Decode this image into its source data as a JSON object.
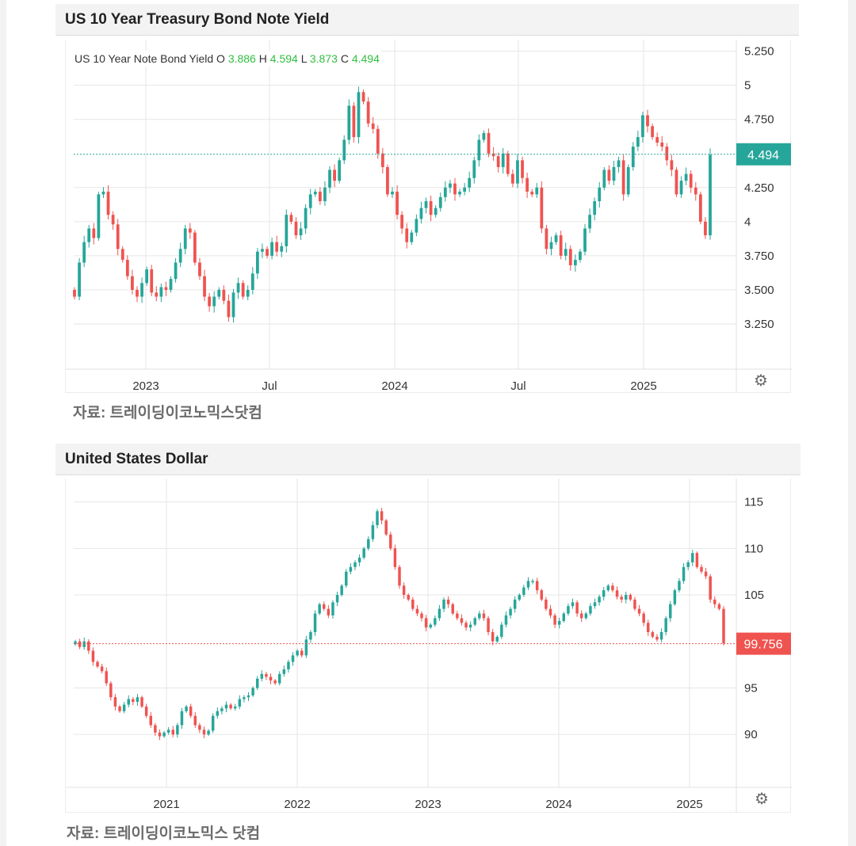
{
  "charts": [
    {
      "header_title": "US 10 Year Treasury Bond Note Yield",
      "source": "자료: 트레이딩이코노믹스닷컴",
      "ohlc": {
        "label": "US 10 Year Note Bond Yield",
        "o_label": "O",
        "o": "3.886",
        "h_label": "H",
        "h": "4.594",
        "l_label": "L",
        "l": "3.873",
        "c_label": "C",
        "c": "4.494"
      },
      "last_value_label": "4.494",
      "icon": "gear-icon"
    },
    {
      "header_title": "United States Dollar",
      "source": "자료: 트레이딩이코노믹스 닷컴",
      "last_value_label": "99.756",
      "icon": "gear-icon"
    }
  ],
  "colors": {
    "up": "#26a69a",
    "down": "#ef5350",
    "last_yield_badge": "#26a69a",
    "last_dollar_badge": "#ef5350",
    "grid": "#e6e6e6"
  },
  "chart_data": [
    {
      "type": "candlestick",
      "title": "US 10 Year Treasury Bond Note Yield",
      "x_ticks": [
        "2023",
        "Jul",
        "2024",
        "Jul",
        "2025"
      ],
      "y_ticks": [
        "3.250",
        "3.500",
        "3.750",
        "4",
        "4.250",
        "4.750",
        "5",
        "5.250"
      ],
      "ylim": [
        3.0,
        5.3
      ],
      "last_value": 4.494,
      "grid": true,
      "weekly_close": [
        3.45,
        3.7,
        3.85,
        3.95,
        3.88,
        4.2,
        4.22,
        4.05,
        3.98,
        3.8,
        3.72,
        3.6,
        3.5,
        3.45,
        3.55,
        3.65,
        3.48,
        3.45,
        3.52,
        3.5,
        3.58,
        3.7,
        3.8,
        3.95,
        3.92,
        3.7,
        3.6,
        3.45,
        3.38,
        3.45,
        3.5,
        3.42,
        3.3,
        3.48,
        3.55,
        3.45,
        3.5,
        3.62,
        3.78,
        3.8,
        3.75,
        3.85,
        3.78,
        3.82,
        4.05,
        4.0,
        3.9,
        3.95,
        4.1,
        4.2,
        4.22,
        4.15,
        4.25,
        4.38,
        4.3,
        4.45,
        4.6,
        4.85,
        4.62,
        4.95,
        4.88,
        4.72,
        4.68,
        4.5,
        4.4,
        4.2,
        4.22,
        4.05,
        3.95,
        3.85,
        3.92,
        4.02,
        4.1,
        4.15,
        4.05,
        4.1,
        4.18,
        4.25,
        4.28,
        4.2,
        4.22,
        4.25,
        4.32,
        4.45,
        4.6,
        4.65,
        4.5,
        4.48,
        4.4,
        4.5,
        4.35,
        4.28,
        4.45,
        4.32,
        4.22,
        4.2,
        4.25,
        3.95,
        3.8,
        3.85,
        3.9,
        3.75,
        3.8,
        3.68,
        3.72,
        3.78,
        3.95,
        4.05,
        4.15,
        4.25,
        4.38,
        4.3,
        4.4,
        4.45,
        4.2,
        4.4,
        4.55,
        4.62,
        4.78,
        4.7,
        4.62,
        4.58,
        4.55,
        4.45,
        4.38,
        4.2,
        4.3,
        4.35,
        4.25,
        4.2,
        4.0,
        3.9,
        4.49
      ]
    },
    {
      "type": "candlestick",
      "title": "United States Dollar",
      "x_ticks": [
        "2021",
        "2022",
        "2023",
        "2024",
        "2025"
      ],
      "y_ticks": [
        "90",
        "95",
        "105",
        "110",
        "115"
      ],
      "ylim": [
        85.5,
        116.5
      ],
      "last_value": 99.756,
      "grid": true,
      "weekly_close": [
        100.0,
        99.4,
        100.0,
        99.0,
        97.8,
        97.3,
        96.8,
        95.5,
        94.0,
        93.0,
        92.5,
        93.2,
        93.8,
        93.5,
        94.0,
        93.0,
        92.0,
        91.0,
        90.2,
        89.8,
        90.2,
        90.5,
        90.0,
        91.0,
        92.5,
        93.0,
        92.0,
        91.0,
        90.5,
        90.0,
        90.4,
        92.0,
        92.5,
        92.8,
        93.2,
        92.8,
        93.0,
        93.8,
        94.0,
        94.2,
        95.0,
        96.0,
        96.5,
        96.2,
        95.8,
        95.5,
        96.5,
        97.0,
        97.8,
        98.5,
        99.0,
        98.5,
        100.2,
        101.0,
        103.0,
        104.0,
        103.5,
        102.8,
        104.2,
        105.0,
        106.0,
        107.5,
        108.0,
        108.5,
        109.0,
        110.0,
        111.0,
        112.5,
        114.0,
        113.0,
        111.5,
        110.0,
        108.0,
        106.0,
        105.0,
        104.5,
        103.5,
        103.0,
        102.5,
        101.5,
        101.8,
        102.5,
        103.5,
        104.5,
        104.0,
        103.0,
        102.5,
        102.0,
        101.5,
        101.8,
        102.5,
        103.0,
        102.5,
        101.0,
        100.0,
        100.5,
        101.8,
        102.8,
        103.5,
        104.5,
        105.0,
        105.8,
        106.5,
        106.5,
        105.5,
        104.5,
        103.5,
        102.8,
        101.8,
        102.2,
        103.0,
        103.8,
        104.2,
        103.0,
        102.5,
        103.0,
        103.8,
        104.2,
        104.8,
        105.5,
        106.0,
        105.5,
        104.8,
        104.5,
        105.0,
        104.5,
        103.5,
        103.0,
        102.0,
        101.0,
        100.5,
        100.2,
        101.0,
        102.5,
        104.0,
        105.5,
        106.5,
        108.0,
        108.5,
        109.5,
        108.0,
        107.5,
        107.0,
        104.5,
        104.0,
        103.5,
        99.8
      ]
    }
  ]
}
